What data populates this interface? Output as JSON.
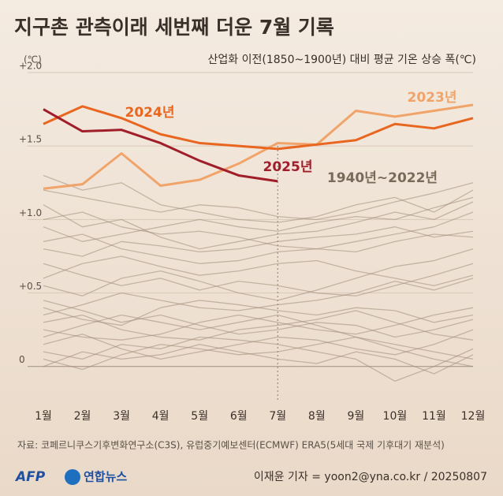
{
  "chart_data": {
    "type": "line",
    "title": "지구촌 관측이래 세번째 더운 7월 기록",
    "subtitle": "산업화 이전(1850~1900년) 대비 평균 기온 상승 폭(℃)",
    "y_unit": "(℃)",
    "annotation": "1940년~2022년",
    "annotation_color": "#7a6a5a",
    "source": "자료: 코페르니쿠스기후변화연구소(C3S), 유럽중기예보센터(ECMWF) ERA5(5세대 국제 기후대기 재분석)",
    "credit": "이재윤 기자 = yoon2@yna.co.kr / 20250807",
    "logo_afp": "AFP",
    "logo_yna": "연합뉴스",
    "categories": [
      "1월",
      "2월",
      "3월",
      "4월",
      "5월",
      "6월",
      "7월",
      "8월",
      "9월",
      "10월",
      "11월",
      "12월"
    ],
    "ylim": [
      -0.2,
      2.0
    ],
    "yticks": [
      0,
      {
        "value": 0.5,
        "label": "+0.5"
      },
      {
        "value": 1.0,
        "label": "+1.0"
      },
      {
        "value": 1.5,
        "label": "+1.5"
      },
      {
        "value": 2.0,
        "label": "+2.0"
      }
    ],
    "grid": true,
    "series": [
      {
        "color": "#a08c78",
        "values": [
          0.45,
          0.38,
          0.3,
          0.35,
          0.28,
          0.22,
          0.25,
          0.3,
          0.28,
          0.2,
          0.25,
          0.32
        ]
      },
      {
        "color": "#a08c78",
        "values": [
          0.1,
          0.05,
          0.15,
          0.12,
          0.2,
          0.18,
          0.15,
          0.1,
          0.05,
          -0.1,
          0.0,
          0.12
        ]
      },
      {
        "color": "#a08c78",
        "values": [
          1.1,
          0.95,
          1.0,
          0.88,
          0.8,
          0.85,
          0.9,
          0.92,
          0.98,
          1.05,
          1.0,
          1.12
        ]
      },
      {
        "color": "#a08c78",
        "values": [
          0.7,
          0.62,
          0.55,
          0.6,
          0.52,
          0.58,
          0.55,
          0.5,
          0.48,
          0.55,
          0.62,
          0.7
        ]
      },
      {
        "color": "#a08c78",
        "values": [
          0.2,
          0.28,
          0.35,
          0.3,
          0.25,
          0.3,
          0.35,
          0.28,
          0.2,
          0.15,
          0.1,
          0.05
        ]
      },
      {
        "color": "#a08c78",
        "values": [
          0.85,
          0.9,
          0.8,
          0.75,
          0.7,
          0.72,
          0.78,
          0.8,
          0.85,
          0.9,
          0.95,
          1.05
        ]
      },
      {
        "color": "#a08c78",
        "values": [
          1.3,
          1.2,
          1.25,
          1.1,
          1.05,
          1.0,
          0.98,
          1.02,
          1.1,
          1.15,
          1.05,
          1.2
        ]
      },
      {
        "color": "#a08c78",
        "values": [
          0.35,
          0.42,
          0.5,
          0.45,
          0.4,
          0.38,
          0.42,
          0.45,
          0.5,
          0.58,
          0.52,
          0.6
        ]
      },
      {
        "color": "#a08c78",
        "values": [
          0.0,
          0.1,
          0.05,
          0.08,
          0.15,
          0.1,
          0.05,
          0.02,
          0.1,
          0.05,
          -0.05,
          0.08
        ]
      },
      {
        "color": "#a08c78",
        "values": [
          0.55,
          0.48,
          0.6,
          0.65,
          0.58,
          0.5,
          0.45,
          0.52,
          0.6,
          0.68,
          0.72,
          0.8
        ]
      },
      {
        "color": "#a08c78",
        "values": [
          1.0,
          1.05,
          0.95,
          0.9,
          0.92,
          0.88,
          0.82,
          0.8,
          0.78,
          0.85,
          0.9,
          0.88
        ]
      },
      {
        "color": "#a08c78",
        "values": [
          0.25,
          0.2,
          0.18,
          0.22,
          0.3,
          0.35,
          0.3,
          0.25,
          0.22,
          0.28,
          0.35,
          0.4
        ]
      },
      {
        "color": "#a08c78",
        "values": [
          0.6,
          0.7,
          0.75,
          0.68,
          0.62,
          0.65,
          0.7,
          0.72,
          0.65,
          0.6,
          0.55,
          0.62
        ]
      },
      {
        "color": "#a08c78",
        "values": [
          0.15,
          0.22,
          0.12,
          0.05,
          0.1,
          0.15,
          0.2,
          0.18,
          0.12,
          0.08,
          0.15,
          0.25
        ]
      },
      {
        "color": "#a08c78",
        "values": [
          1.2,
          1.15,
          1.1,
          1.05,
          1.1,
          1.08,
          1.02,
          1.0,
          1.05,
          1.12,
          1.18,
          1.25
        ]
      },
      {
        "color": "#a08c78",
        "values": [
          0.4,
          0.32,
          0.28,
          0.4,
          0.45,
          0.42,
          0.38,
          0.35,
          0.4,
          0.38,
          0.3,
          0.35
        ]
      },
      {
        "color": "#a08c78",
        "values": [
          0.8,
          0.75,
          0.85,
          0.82,
          0.78,
          0.8,
          0.85,
          0.88,
          0.9,
          0.95,
          0.88,
          0.92
        ]
      },
      {
        "color": "#a08c78",
        "values": [
          0.3,
          0.35,
          0.25,
          0.2,
          0.18,
          0.25,
          0.28,
          0.32,
          0.38,
          0.3,
          0.22,
          0.18
        ]
      },
      {
        "color": "#a08c78",
        "values": [
          0.95,
          0.85,
          0.9,
          0.95,
          1.0,
          0.95,
          0.92,
          0.98,
          1.02,
          1.0,
          1.08,
          1.15
        ]
      },
      {
        "color": "#a08c78",
        "values": [
          0.05,
          -0.02,
          0.08,
          0.15,
          0.12,
          0.08,
          0.1,
          0.15,
          0.2,
          0.12,
          0.05,
          0.0
        ]
      },
      {
        "name": "2023년",
        "color": "#f0a46a",
        "values": [
          1.21,
          1.24,
          1.45,
          1.23,
          1.27,
          1.38,
          1.52,
          1.51,
          1.74,
          1.7,
          1.74,
          1.78
        ]
      },
      {
        "name": "2024년",
        "color": "#e8661f",
        "values": [
          1.65,
          1.77,
          1.69,
          1.58,
          1.52,
          1.5,
          1.48,
          1.51,
          1.54,
          1.65,
          1.62,
          1.69
        ]
      },
      {
        "name": "2025년",
        "color": "#a01d2a",
        "values": [
          1.75,
          1.6,
          1.61,
          1.52,
          1.4,
          1.3,
          1.26,
          null,
          null,
          null,
          null,
          null
        ]
      }
    ]
  }
}
